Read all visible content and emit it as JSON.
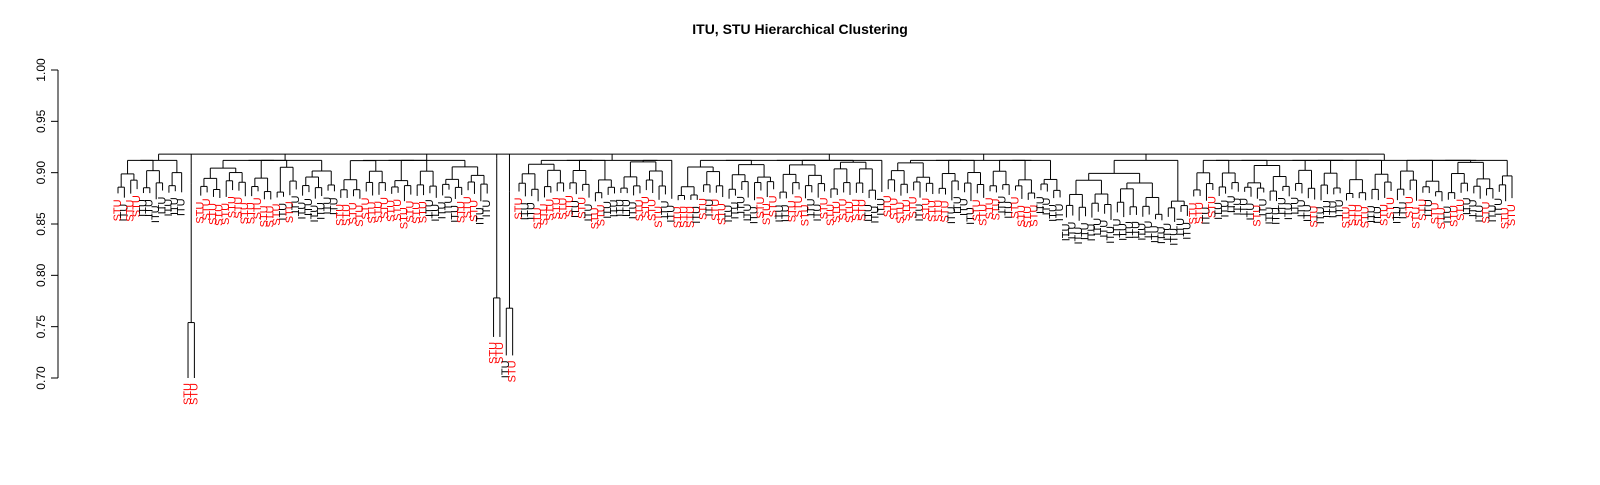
{
  "chart_data": {
    "type": "dendrogram",
    "title": "ITU, STU Hierarchical Clustering",
    "xlabel": "",
    "ylabel": "",
    "ylim": [
      0.7,
      1.0
    ],
    "y_ticks": [
      "0.70",
      "0.75",
      "0.80",
      "0.85",
      "0.90",
      "0.95",
      "1.00"
    ],
    "root_height": 0.918,
    "label_colors": {
      "ITU": "#000000",
      "STU": "#ff0000"
    },
    "colors": {
      "branch": "#000000",
      "itu_label": "#000000",
      "stu_label": "#ff0000"
    },
    "outlier_merges": [
      {
        "labels": [
          "STU",
          "STU"
        ],
        "leaf_height": 0.7,
        "merge_height": 0.754,
        "join_height": 0.889
      },
      {
        "labels": [
          "STU",
          "STU"
        ],
        "leaf_height": 0.74,
        "merge_height": 0.778,
        "join_height": 0.914
      },
      {
        "labels": [
          "ITU",
          "STU"
        ],
        "leaf_height": 0.722,
        "merge_height": 0.768,
        "join_height": 0.882
      }
    ],
    "groups": [
      {
        "id": 1,
        "labels": [
          "STU",
          "ITU",
          "STU",
          "STU",
          "ITU",
          "ITU",
          "ITU",
          "ITU",
          "ITU",
          "ITU",
          "ITU"
        ]
      },
      {
        "id": 2,
        "labels": [
          "STU",
          "STU",
          "STU",
          "STU",
          "STU",
          "STU",
          "STU",
          "STU",
          "STU",
          "STU",
          "STU",
          "STU",
          "STU",
          "ITU",
          "STU",
          "ITU",
          "ITU",
          "ITU",
          "ITU",
          "ITU",
          "ITU",
          "ITU"
        ]
      },
      {
        "id": 3,
        "labels": [
          "STU",
          "STU",
          "STU",
          "STU",
          "STU",
          "STU",
          "STU",
          "STU",
          "STU",
          "STU",
          "STU",
          "STU",
          "STU",
          "STU",
          "ITU",
          "ITU",
          "ITU",
          "ITU",
          "ITU",
          "STU",
          "STU",
          "STU",
          "ITU",
          "ITU"
        ]
      },
      {
        "id": 4,
        "labels": [
          "STU",
          "ITU",
          "ITU",
          "STU",
          "STU",
          "STU",
          "STU",
          "STU",
          "STU",
          "ITU",
          "STU",
          "ITU",
          "STU",
          "STU",
          "ITU",
          "ITU",
          "ITU",
          "ITU",
          "ITU",
          "STU",
          "STU",
          "STU",
          "STU",
          "ITU",
          "ITU"
        ]
      },
      {
        "id": 5,
        "labels": [
          "STU",
          "STU",
          "STU",
          "ITU",
          "STU",
          "ITU",
          "STU",
          "STU",
          "ITU",
          "ITU",
          "ITU",
          "ITU",
          "ITU",
          "STU",
          "STU",
          "STU",
          "ITU",
          "ITU",
          "STU",
          "STU",
          "STU",
          "ITU",
          "ITU",
          "STU",
          "STU",
          "STU",
          "STU",
          "STU",
          "STU",
          "STU",
          "ITU",
          "ITU",
          "ITU"
        ]
      },
      {
        "id": 6,
        "labels": [
          "STU",
          "STU",
          "STU",
          "STU",
          "STU",
          "ITU",
          "STU",
          "STU",
          "STU",
          "STU",
          "ITU",
          "ITU",
          "ITU",
          "ITU",
          "STU",
          "STU",
          "STU",
          "STU",
          "ITU",
          "ITU",
          "STU",
          "STU",
          "STU",
          "STU",
          "ITU",
          "ITU",
          "ITU",
          "ITU"
        ]
      },
      {
        "id": 7,
        "labels": [
          "ITU",
          "ITU",
          "ITU",
          "ITU",
          "ITU",
          "ITU",
          "ITU",
          "ITU",
          "ITU",
          "ITU",
          "ITU",
          "ITU",
          "ITU",
          "ITU",
          "ITU",
          "ITU",
          "ITU",
          "ITU",
          "ITU",
          "ITU"
        ]
      },
      {
        "id": 8,
        "labels": [
          "STU",
          "STU",
          "ITU",
          "STU",
          "ITU",
          "ITU",
          "ITU",
          "ITU",
          "ITU",
          "ITU",
          "STU",
          "ITU",
          "ITU",
          "ITU",
          "ITU",
          "ITU",
          "ITU",
          "ITU",
          "ITU",
          "STU",
          "ITU",
          "ITU",
          "ITU",
          "ITU",
          "STU",
          "STU",
          "STU",
          "STU",
          "ITU",
          "ITU",
          "STU",
          "STU",
          "ITU",
          "ITU",
          "STU",
          "STU",
          "STU",
          "ITU",
          "STU",
          "STU",
          "ITU",
          "STU",
          "STU",
          "ITU",
          "ITU",
          "ITU",
          "STU",
          "ITU",
          "ITU",
          "STU",
          "STU"
        ]
      }
    ]
  }
}
